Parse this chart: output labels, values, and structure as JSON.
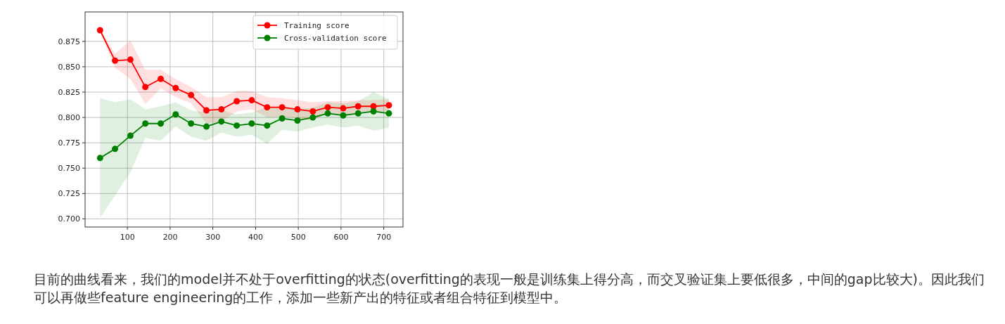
{
  "chart_data": {
    "type": "line",
    "x": [
      36,
      71,
      107,
      142,
      178,
      213,
      249,
      285,
      320,
      356,
      391,
      427,
      462,
      498,
      534,
      569,
      605,
      640,
      676,
      712
    ],
    "series": [
      {
        "name": "Training score",
        "color": "#ff0000",
        "values": [
          0.886,
          0.856,
          0.857,
          0.83,
          0.838,
          0.829,
          0.822,
          0.807,
          0.808,
          0.816,
          0.817,
          0.81,
          0.81,
          0.808,
          0.806,
          0.81,
          0.809,
          0.811,
          0.811,
          0.812
        ],
        "upper": [
          0.887,
          0.863,
          0.876,
          0.847,
          0.847,
          0.838,
          0.83,
          0.82,
          0.82,
          0.826,
          0.826,
          0.82,
          0.819,
          0.817,
          0.815,
          0.816,
          0.816,
          0.817,
          0.817,
          0.818
        ],
        "lower": [
          0.885,
          0.849,
          0.838,
          0.813,
          0.829,
          0.82,
          0.814,
          0.794,
          0.796,
          0.806,
          0.808,
          0.8,
          0.801,
          0.799,
          0.797,
          0.804,
          0.802,
          0.805,
          0.805,
          0.806
        ]
      },
      {
        "name": "Cross-validation score",
        "color": "#008000",
        "values": [
          0.76,
          0.769,
          0.782,
          0.794,
          0.794,
          0.803,
          0.794,
          0.791,
          0.796,
          0.792,
          0.794,
          0.792,
          0.799,
          0.797,
          0.8,
          0.804,
          0.802,
          0.804,
          0.806,
          0.804
        ],
        "upper": [
          0.819,
          0.815,
          0.818,
          0.808,
          0.811,
          0.815,
          0.807,
          0.805,
          0.807,
          0.803,
          0.805,
          0.81,
          0.81,
          0.808,
          0.81,
          0.815,
          0.814,
          0.816,
          0.825,
          0.818
        ],
        "lower": [
          0.701,
          0.723,
          0.746,
          0.78,
          0.777,
          0.791,
          0.781,
          0.777,
          0.785,
          0.781,
          0.783,
          0.774,
          0.788,
          0.786,
          0.79,
          0.793,
          0.79,
          0.792,
          0.787,
          0.79
        ]
      }
    ],
    "xlim": [
      1,
      745
    ],
    "ylim": [
      0.692,
      0.904
    ],
    "xticks": [
      100,
      200,
      300,
      400,
      500,
      600,
      700
    ],
    "yticks": [
      {
        "value": 0.7,
        "label": "0.700"
      },
      {
        "value": 0.725,
        "label": "0.725"
      },
      {
        "value": 0.75,
        "label": "0.750"
      },
      {
        "value": 0.775,
        "label": "0.775"
      },
      {
        "value": 0.8,
        "label": "0.800"
      },
      {
        "value": 0.825,
        "label": "0.825"
      },
      {
        "value": 0.85,
        "label": "0.850"
      },
      {
        "value": 0.875,
        "label": "0.875"
      }
    ],
    "grid": true,
    "legend": "top right",
    "marker": "circle",
    "annotations": [
      "目前的曲线看来，我们的model并不处于overfitting的状态(overfitting的表现一般是训练集上得分高，而交叉验证集上要低很多，中间的gap比较大)。因此我们可以再做些feature engineering的工作，添加一些新产出的特征或者组合特征到模型中。"
    ]
  }
}
